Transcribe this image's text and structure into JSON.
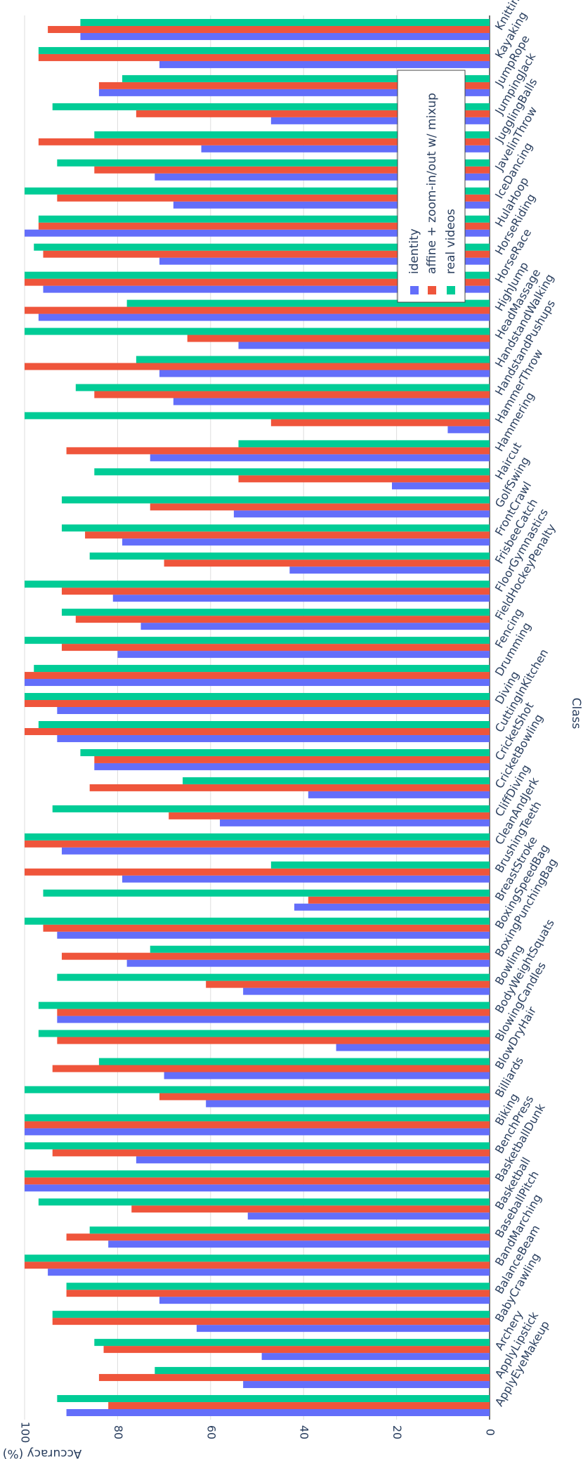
{
  "chart_data": {
    "type": "bar",
    "orientation": "grouped",
    "xlabel": "Class",
    "ylabel": "Accuracy (%)",
    "ylim": [
      0,
      100
    ],
    "yticks": [
      0,
      20,
      40,
      60,
      80,
      100
    ],
    "grid": true,
    "legend_position": "top-right",
    "categories": [
      "ApplyEyeMakeup",
      "ApplyLipstick",
      "Archery",
      "BabyCrawling",
      "BalanceBeam",
      "BandMarching",
      "BaseballPitch",
      "Basketball",
      "BasketballDunk",
      "BenchPress",
      "Biking",
      "Billiards",
      "BlowDryHair",
      "BlowingCandles",
      "BodyWeightSquats",
      "Bowling",
      "BoxingPunchingBag",
      "BoxingSpeedBag",
      "BreastStroke",
      "BrushingTeeth",
      "CleanAndJerk",
      "CliffDiving",
      "CricketBowling",
      "CricketShot",
      "CuttingInKitchen",
      "Diving",
      "Drumming",
      "Fencing",
      "FieldHockeyPenalty",
      "FloorGymnastics",
      "FrisbeeCatch",
      "FrontCrawl",
      "GolfSwing",
      "Haircut",
      "Hammering",
      "HammerThrow",
      "HandstandPushups",
      "HandstandWalking",
      "HeadMassage",
      "HighJump",
      "HorseRace",
      "HorseRiding",
      "HulaHoop",
      "IceDancing",
      "JavelinThrow",
      "JugglingBalls",
      "JumpingJack",
      "JumpRope",
      "Kayaking",
      "Knitting"
    ],
    "series": [
      {
        "name": "identity",
        "color": "#636efa",
        "values": [
          91,
          53,
          49,
          63,
          71,
          95,
          82,
          52,
          100,
          76,
          100,
          61,
          70,
          33,
          93,
          53,
          78,
          93,
          42,
          79,
          92,
          58,
          39,
          85,
          93,
          93,
          100,
          80,
          75,
          81,
          43,
          79,
          55,
          21,
          73,
          9,
          68,
          71,
          54,
          97,
          96,
          71,
          100,
          68,
          72,
          62,
          47,
          84,
          71,
          88
        ]
      },
      {
        "name": "affine + zoom-in/out w/ mixup",
        "color": "#ef553b",
        "values": [
          82,
          84,
          83,
          94,
          91,
          100,
          91,
          77,
          100,
          94,
          100,
          71,
          94,
          93,
          93,
          61,
          92,
          96,
          39,
          100,
          100,
          69,
          86,
          85,
          100,
          100,
          100,
          92,
          89,
          92,
          70,
          87,
          73,
          54,
          91,
          47,
          85,
          100,
          65,
          100,
          100,
          96,
          97,
          93,
          85,
          97,
          76,
          84,
          97,
          95
        ]
      },
      {
        "name": "real videos",
        "color": "#00cc96",
        "values": [
          93,
          72,
          85,
          94,
          91,
          100,
          86,
          97,
          100,
          100,
          100,
          100,
          84,
          97,
          97,
          93,
          73,
          100,
          96,
          47,
          100,
          94,
          66,
          88,
          97,
          100,
          98,
          100,
          92,
          100,
          86,
          92,
          92,
          85,
          54,
          100,
          89,
          76,
          100,
          78,
          100,
          98,
          97,
          100,
          93,
          85,
          94,
          79,
          97,
          88
        ]
      }
    ]
  }
}
